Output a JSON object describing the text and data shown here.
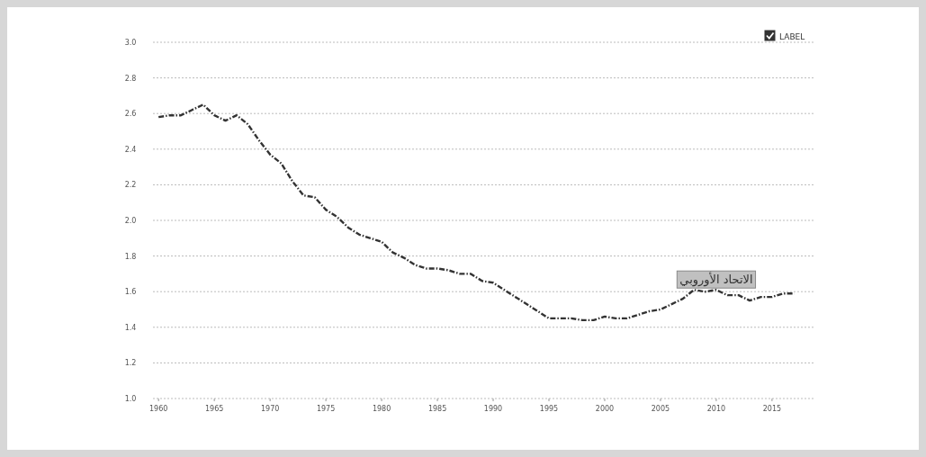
{
  "chart_data": {
    "type": "line",
    "x": [
      1960,
      1961,
      1962,
      1963,
      1964,
      1965,
      1966,
      1967,
      1968,
      1969,
      1970,
      1971,
      1972,
      1973,
      1974,
      1975,
      1976,
      1977,
      1978,
      1979,
      1980,
      1981,
      1982,
      1983,
      1984,
      1985,
      1986,
      1987,
      1988,
      1989,
      1990,
      1991,
      1992,
      1993,
      1994,
      1995,
      1996,
      1997,
      1998,
      1999,
      2000,
      2001,
      2002,
      2003,
      2004,
      2005,
      2006,
      2007,
      2008,
      2009,
      2010,
      2011,
      2012,
      2013,
      2014,
      2015,
      2016,
      2017
    ],
    "series": [
      {
        "name": "LABEL",
        "color": "#333333",
        "values": [
          2.58,
          2.59,
          2.59,
          2.62,
          2.65,
          2.59,
          2.56,
          2.59,
          2.54,
          2.45,
          2.37,
          2.32,
          2.22,
          2.14,
          2.13,
          2.06,
          2.02,
          1.96,
          1.92,
          1.9,
          1.88,
          1.82,
          1.79,
          1.75,
          1.73,
          1.73,
          1.72,
          1.7,
          1.7,
          1.66,
          1.65,
          1.61,
          1.57,
          1.53,
          1.49,
          1.45,
          1.45,
          1.45,
          1.44,
          1.44,
          1.46,
          1.45,
          1.45,
          1.47,
          1.49,
          1.5,
          1.53,
          1.56,
          1.61,
          1.6,
          1.61,
          1.58,
          1.58,
          1.55,
          1.57,
          1.57,
          1.59,
          1.59
        ]
      }
    ],
    "annotations": [
      {
        "text": "الاتحاد الأوروبي",
        "x": 2010,
        "y": 1.61
      }
    ],
    "xlim": [
      1959.5,
      2018.8
    ],
    "ylim": [
      1.0,
      3.0
    ],
    "xticks": [
      1960,
      1965,
      1970,
      1975,
      1980,
      1985,
      1990,
      1995,
      2000,
      2005,
      2010,
      2015
    ],
    "yticks": [
      {
        "value": 1.0,
        "label": "1.0"
      },
      {
        "value": 1.2,
        "label": "1.2"
      },
      {
        "value": 1.4,
        "label": "1.4"
      },
      {
        "value": 1.6,
        "label": "1.6"
      },
      {
        "value": 1.8,
        "label": "1.8"
      },
      {
        "value": 2.0,
        "label": "2.0"
      },
      {
        "value": 2.2,
        "label": "2.2"
      },
      {
        "value": 2.4,
        "label": "2.4"
      },
      {
        "value": 2.6,
        "label": "2.6"
      },
      {
        "value": 2.8,
        "label": "2.8"
      },
      {
        "value": 3.0,
        "label": "3.0"
      }
    ],
    "grid": "y",
    "legend": "top right",
    "line_style": "dashed",
    "marker": "none"
  }
}
